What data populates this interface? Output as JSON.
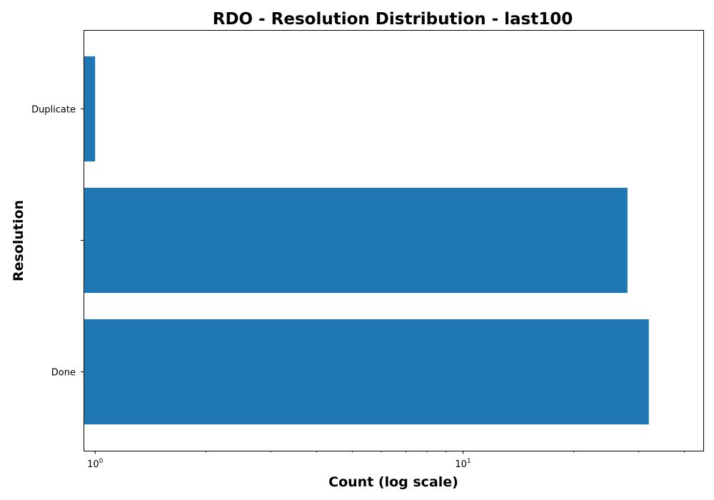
{
  "chart_data": {
    "type": "bar",
    "orientation": "horizontal",
    "title": "RDO - Resolution Distribution - last100",
    "xlabel": "Count (log scale)",
    "ylabel": "Resolution",
    "xscale": "log",
    "xlim": [
      0.93,
      45
    ],
    "categories": [
      "Duplicate",
      "",
      "Done"
    ],
    "values": [
      1,
      28,
      32
    ],
    "major_ticks": [
      {
        "value": 1,
        "base": "10",
        "exp": "0"
      },
      {
        "value": 10,
        "base": "10",
        "exp": "1"
      }
    ],
    "minor_ticks": [
      2,
      3,
      4,
      5,
      6,
      7,
      8,
      9,
      20,
      30,
      40
    ],
    "bar_color": "#1f77b4",
    "grid": false
  }
}
